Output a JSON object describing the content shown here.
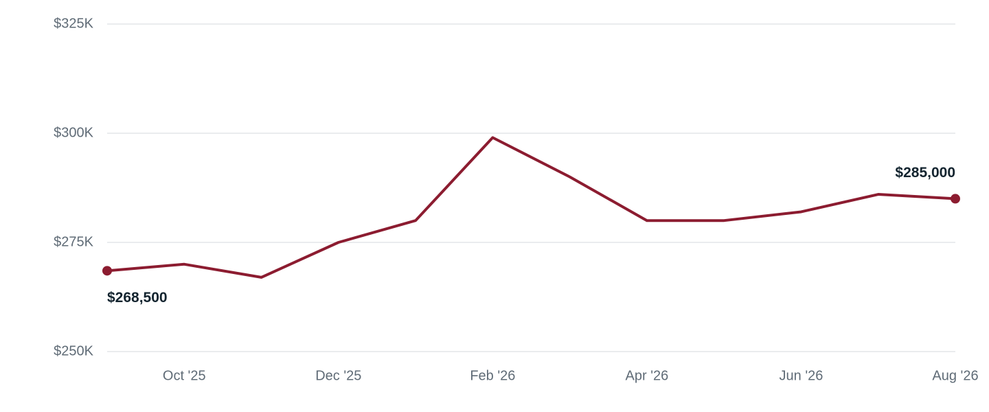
{
  "chart_data": {
    "type": "line",
    "categories": [
      null,
      "Oct '25",
      null,
      "Dec '25",
      null,
      "Feb '26",
      null,
      "Apr '26",
      null,
      "Jun '26",
      null,
      "Aug '26"
    ],
    "series": [
      {
        "color": "#8c1c30",
        "values": [
          268500,
          270000,
          267000,
          275000,
          280000,
          299000,
          290000,
          280000,
          280000,
          282000,
          286000,
          285000
        ],
        "value_labels": [
          "$268,500",
          null,
          null,
          null,
          null,
          null,
          null,
          null,
          null,
          null,
          null,
          "$285,000"
        ]
      }
    ],
    "ylim": [
      250000,
      325000
    ],
    "yticks": [
      {
        "value": 250000,
        "label": "$250K"
      },
      {
        "value": 275000,
        "label": "$275K"
      },
      {
        "value": 300000,
        "label": "$300K"
      },
      {
        "value": 325000,
        "label": "$325K"
      }
    ],
    "grid": true
  }
}
